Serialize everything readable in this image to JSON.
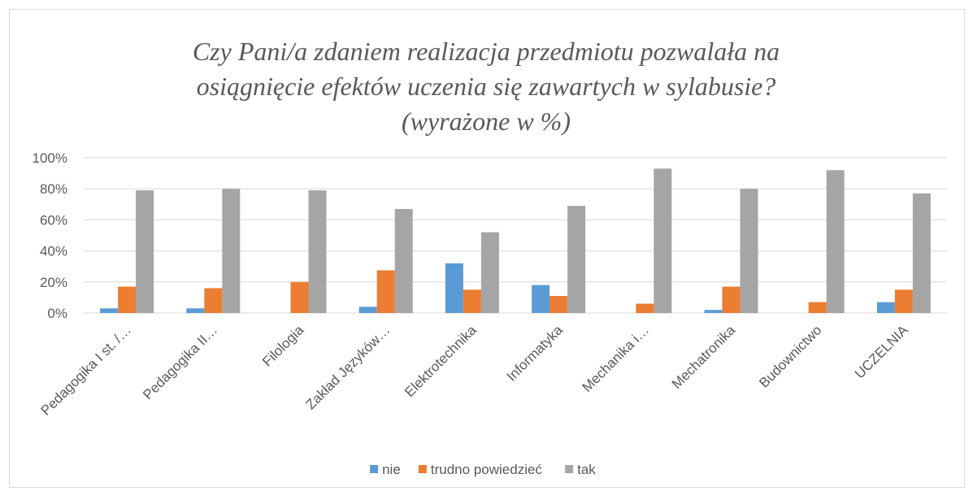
{
  "chart_data": {
    "type": "bar",
    "title": [
      "Czy Pani/a zdaniem realizacja przedmiotu pozwalała na",
      "osiągnięcie efektów uczenia się zawartych w sylabusie?",
      "(wyrażone w %)"
    ],
    "categories": [
      "Pedagogika I st. /…",
      "Pedagogika II…",
      "Filologia",
      "Zakład Języków…",
      "Elektrotechnika",
      "Informatyka",
      "Mechanika i…",
      "Mechatronika",
      "Budownictwo",
      "UCZELNIA"
    ],
    "series": [
      {
        "name": "nie",
        "color": "#5b9bd5",
        "values": [
          3,
          3,
          0,
          4,
          32,
          18,
          0,
          2,
          0,
          7
        ]
      },
      {
        "name": "trudno powiedzieć",
        "color": "#ed7d31",
        "values": [
          17,
          16,
          20,
          27.5,
          15,
          11,
          6,
          17,
          7,
          15
        ]
      },
      {
        "name": "tak",
        "color": "#a5a5a5",
        "values": [
          79,
          80,
          79,
          67,
          52,
          69,
          93,
          80,
          92,
          77
        ]
      }
    ],
    "ylim": [
      0,
      100
    ],
    "yticks": [
      {
        "value": 0,
        "label": "0%"
      },
      {
        "value": 20,
        "label": "20%"
      },
      {
        "value": 40,
        "label": "40%"
      },
      {
        "value": 60,
        "label": "60%"
      },
      {
        "value": 80,
        "label": "80%"
      },
      {
        "value": 100,
        "label": "100%"
      }
    ],
    "grid": true,
    "legend": "bottom"
  }
}
